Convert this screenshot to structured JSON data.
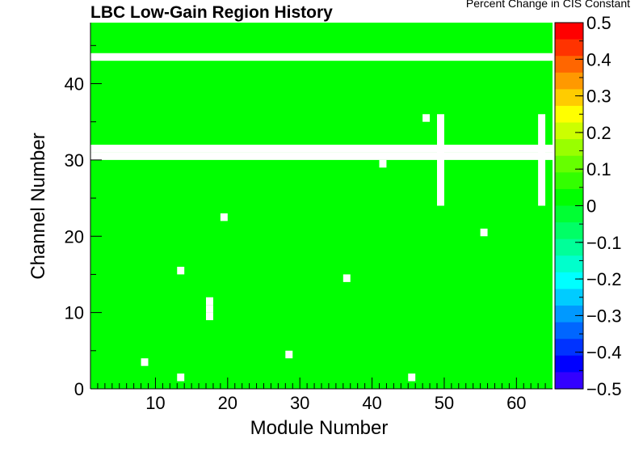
{
  "chart_data": {
    "type": "heatmap",
    "title": "LBC Low-Gain Region History",
    "xlabel": "Module Number",
    "ylabel": "Channel Number",
    "zlabel": "Percent Change in CIS Constant",
    "xlim": [
      1,
      65
    ],
    "ylim": [
      0,
      48
    ],
    "zlim": [
      -0.5,
      0.5
    ],
    "x_ticks": [
      10,
      20,
      30,
      40,
      50,
      60
    ],
    "y_ticks": [
      0,
      10,
      20,
      30,
      40
    ],
    "z_ticks": [
      "0.5",
      "0.4",
      "0.3",
      "0.2",
      "0.1",
      "0",
      "−0.1",
      "−0.2",
      "−0.3",
      "−0.4",
      "−0.5"
    ],
    "fill_value": 0,
    "fill_color": "#00ff00",
    "empty_cells": [
      {
        "module": 8,
        "channel": 3
      },
      {
        "module": 13,
        "channel": 1
      },
      {
        "module": 13,
        "channel": 15
      },
      {
        "module": 17,
        "channel": 9
      },
      {
        "module": 17,
        "channel": 10
      },
      {
        "module": 17,
        "channel": 11
      },
      {
        "module": 19,
        "channel": 22
      },
      {
        "module": 28,
        "channel": 4
      },
      {
        "module": 36,
        "channel": 14
      },
      {
        "module": 41,
        "channel": 29
      },
      {
        "module": 45,
        "channel": 1
      },
      {
        "module": 47,
        "channel": 35
      },
      {
        "module": 55,
        "channel": 20
      }
    ],
    "empty_rows": [
      30,
      31,
      43
    ],
    "empty_column_ranges": [
      {
        "module": 49,
        "channel_from": 24,
        "channel_to": 35
      },
      {
        "module": 63,
        "channel_from": 24,
        "channel_to": 35
      }
    ],
    "palette": [
      "#ff0000",
      "#ff3300",
      "#ff6600",
      "#ff9900",
      "#ffcc00",
      "#ffff00",
      "#ccff00",
      "#99ff00",
      "#66ff00",
      "#33ff00",
      "#00ff00",
      "#00ff33",
      "#00ff66",
      "#00ff99",
      "#00ffcc",
      "#00ffff",
      "#00ccff",
      "#0099ff",
      "#0066ff",
      "#0033ff",
      "#0000ff",
      "#3300ff"
    ]
  }
}
